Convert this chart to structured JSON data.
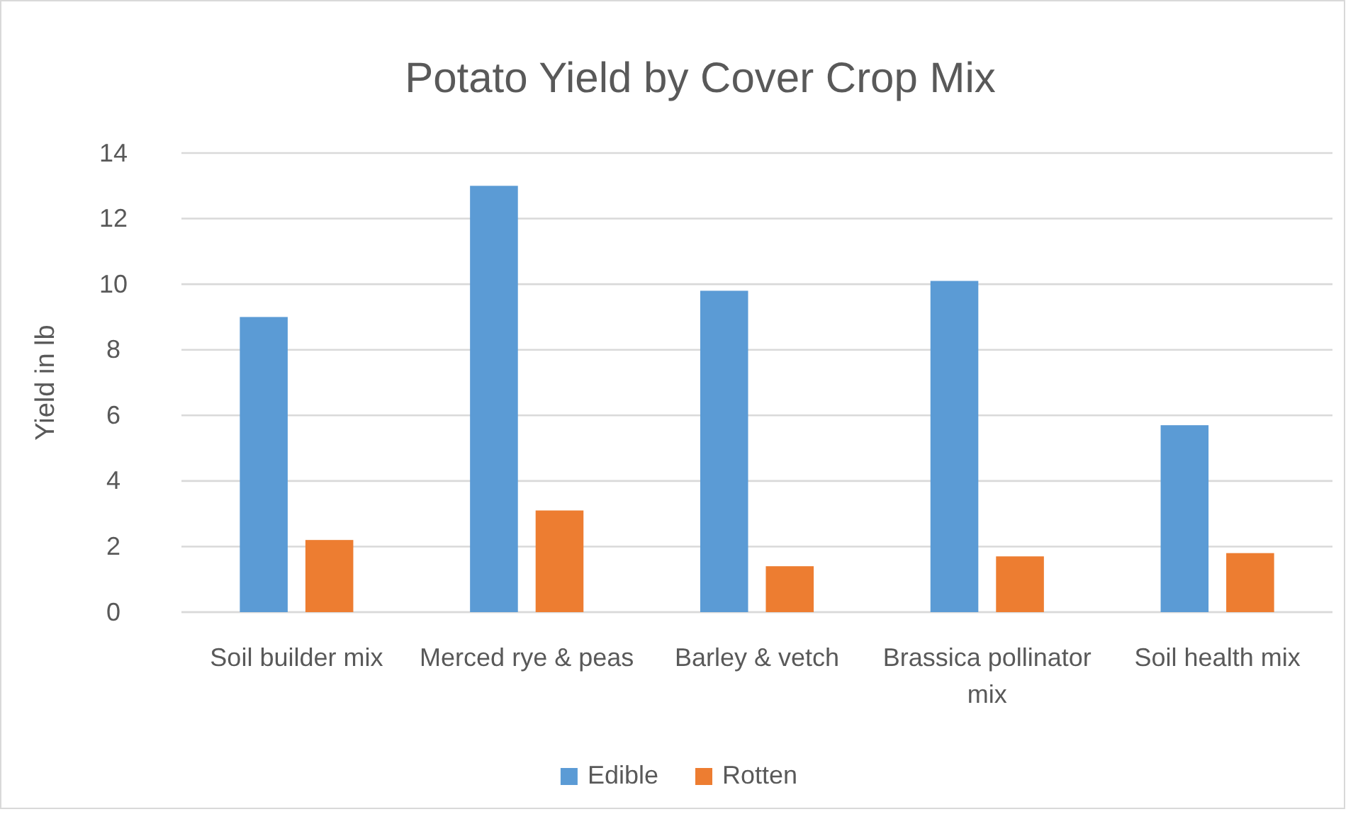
{
  "chart_data": {
    "type": "bar",
    "title": "Potato Yield by Cover Crop Mix",
    "ylabel": "Yield in lb",
    "categories": [
      "Soil builder mix",
      "Merced rye & peas",
      "Barley & vetch",
      "Brassica pollinator mix",
      "Soil health mix"
    ],
    "series": [
      {
        "name": "Edible",
        "color": "#5b9bd5",
        "values": [
          9.0,
          13.0,
          9.8,
          10.1,
          5.7
        ]
      },
      {
        "name": "Rotten",
        "color": "#ed7d31",
        "values": [
          2.2,
          3.1,
          1.4,
          1.7,
          1.8
        ]
      }
    ],
    "ylim": [
      0,
      14
    ],
    "yticks": [
      0,
      2,
      4,
      6,
      8,
      10,
      12,
      14
    ],
    "grid": "y",
    "legend": "bottom"
  }
}
